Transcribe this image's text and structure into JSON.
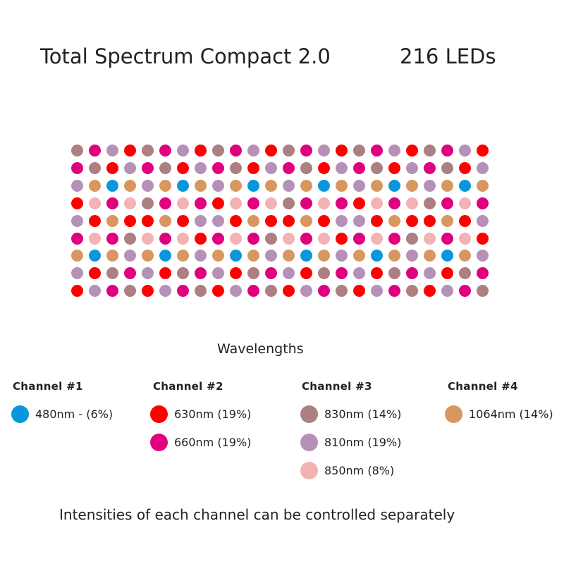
{
  "title": "Total Spectrum Compact 2.0",
  "led_count": "216 LEDs",
  "colors": {
    "B": "#0a96dc",
    "R": "#ff0000",
    "M": "#e0007f",
    "W": "#ac7f80",
    "L": "#b591b8",
    "P": "#f3b2b4",
    "T": "#d8975f"
  },
  "led_grid": [
    "WMLRWMLRWMLRWMLRWMLRWMLR",
    "MWRLMWRLMWRLMWRLMWRLMWRL",
    "LTBTLTBTLTBTLTBTLTBTLTBT",
    "RPMPWMPMRPMPWMPMRPMPWMPM",
    "LRTRRTRLLRTRRTRLLRTRRTRL",
    "MPMWPMPRMPMWPMPRMPMWPMPR",
    "TBTLTBTLTBTLTBTLTBTLTBTL",
    "LRWMLRWMLRWMLRWMLRWMLRWM",
    "RLMWRLMWRLMWRLMWRLMWRLMW"
  ],
  "legend": {
    "heading": "Wavelengths",
    "channels": [
      {
        "name": "Channel #1",
        "items": [
          {
            "code": "B",
            "label": "480nm - (6%)"
          }
        ]
      },
      {
        "name": "Channel #2",
        "items": [
          {
            "code": "R",
            "label": "630nm (19%)"
          },
          {
            "code": "M",
            "label": "660nm (19%)"
          }
        ]
      },
      {
        "name": "Channel #3",
        "items": [
          {
            "code": "W",
            "label": "830nm (14%)"
          },
          {
            "code": "L",
            "label": "810nm (19%)"
          },
          {
            "code": "P",
            "label": "850nm (8%)"
          }
        ]
      },
      {
        "name": "Channel #4",
        "items": [
          {
            "code": "T",
            "label": "1064nm (14%)"
          }
        ]
      }
    ]
  },
  "footer": "Intensities of each channel can be controlled separately"
}
